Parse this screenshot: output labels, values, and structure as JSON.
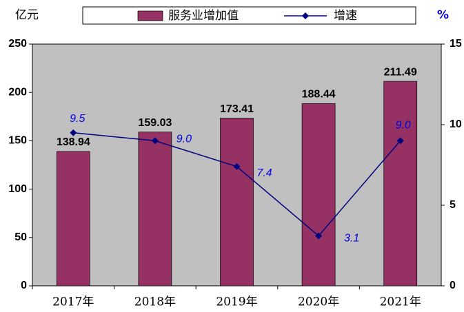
{
  "chart_data": {
    "type": "bar",
    "y_label": "亿元",
    "y2_label": "%",
    "categories": [
      "2017年",
      "2018年",
      "2019年",
      "2020年",
      "2021年"
    ],
    "series": [
      {
        "name": "服务业增加值",
        "type": "bar",
        "color": "#953263",
        "values": [
          138.94,
          159.03,
          173.41,
          188.44,
          211.49
        ]
      },
      {
        "name": "增速",
        "type": "line",
        "axis": "y2",
        "color": "#000080",
        "values": [
          9.5,
          9.0,
          7.4,
          3.1,
          9.0
        ],
        "value_labels": [
          "9.5",
          "9.0",
          "7.4",
          "3.1",
          "9.0"
        ]
      }
    ],
    "ylim": [
      0,
      250
    ],
    "yticks": [
      0,
      50,
      100,
      150,
      200,
      250
    ],
    "y2lim": [
      0,
      15
    ],
    "y2ticks": [
      0,
      5,
      10,
      15
    ],
    "background": "#c0c0c0"
  }
}
